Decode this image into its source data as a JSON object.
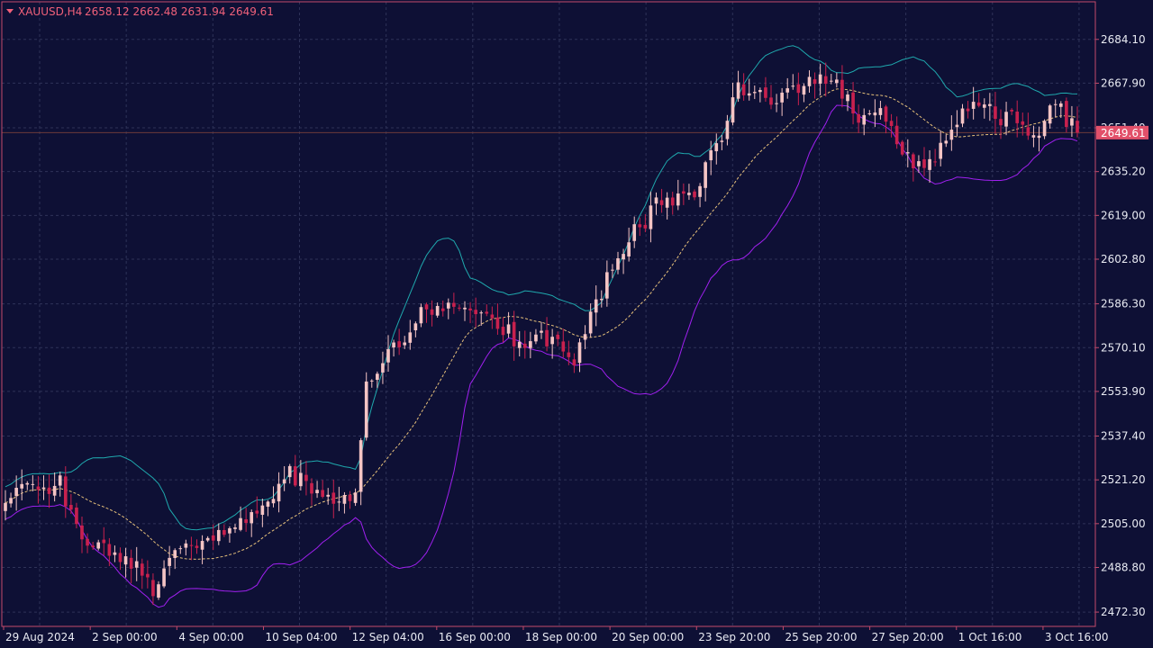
{
  "header": {
    "symbol": "XAUUSD,H4",
    "ohlc": "2658.12 2662.48 2631.94 2649.61"
  },
  "colors": {
    "background": "#0e1035",
    "frame": "#c44a6a",
    "grid": "#2e3258",
    "bull_candle": "#f4c4c4",
    "bear_candle": "#c8214e",
    "upper_band": "#1fa8ad",
    "lower_band": "#a020f0",
    "middle_band": "#e6c07a",
    "price_line": "#6b3a3a",
    "price_tag_bg": "#e2506a",
    "axis_text": "#e8eaf2"
  },
  "chart_data": {
    "type": "candlestick",
    "title": "XAUUSD,H4",
    "indicators": [
      "Bollinger Bands"
    ],
    "current_price": 2649.61,
    "ylim": [
      2467,
      2698
    ],
    "y_ticks": [
      "2684.10",
      "2667.90",
      "2651.40",
      "2635.20",
      "2619.00",
      "2602.80",
      "2586.30",
      "2570.10",
      "2553.90",
      "2537.40",
      "2521.20",
      "2505.00",
      "2488.80",
      "2472.30"
    ],
    "x_ticks": [
      "29 Aug 2024",
      "2 Sep 00:00",
      "4 Sep 00:00",
      "10 Sep 04:00",
      "12 Sep 04:00",
      "16 Sep 00:00",
      "18 Sep 00:00",
      "20 Sep 00:00",
      "23 Sep 20:00",
      "25 Sep 20:00",
      "27 Sep 20:00",
      "1 Oct 16:00",
      "3 Oct 16:00"
    ],
    "grid": true,
    "series": [
      {
        "name": "XAUUSD,H4",
        "close_anchors": [
          [
            0,
            2516
          ],
          [
            8,
            2519
          ],
          [
            10,
            2520
          ],
          [
            13,
            2502
          ],
          [
            16,
            2495
          ],
          [
            22,
            2494
          ],
          [
            27,
            2480
          ],
          [
            30,
            2493
          ],
          [
            36,
            2496
          ],
          [
            42,
            2505
          ],
          [
            48,
            2515
          ],
          [
            52,
            2524
          ],
          [
            58,
            2515
          ],
          [
            64,
            2516
          ],
          [
            66,
            2555
          ],
          [
            70,
            2568
          ],
          [
            76,
            2582
          ],
          [
            82,
            2585
          ],
          [
            88,
            2583
          ],
          [
            94,
            2572
          ],
          [
            100,
            2574
          ],
          [
            104,
            2563
          ],
          [
            106,
            2575
          ],
          [
            110,
            2595
          ],
          [
            114,
            2610
          ],
          [
            120,
            2625
          ],
          [
            126,
            2626
          ],
          [
            130,
            2645
          ],
          [
            134,
            2665
          ],
          [
            140,
            2662
          ],
          [
            144,
            2664
          ],
          [
            148,
            2671
          ],
          [
            152,
            2667
          ],
          [
            156,
            2656
          ],
          [
            160,
            2660
          ],
          [
            164,
            2640
          ],
          [
            168,
            2636
          ],
          [
            172,
            2648
          ],
          [
            176,
            2660
          ],
          [
            180,
            2657
          ],
          [
            184,
            2654
          ],
          [
            188,
            2647
          ],
          [
            192,
            2660
          ],
          [
            196,
            2649.61
          ]
        ]
      }
    ]
  }
}
